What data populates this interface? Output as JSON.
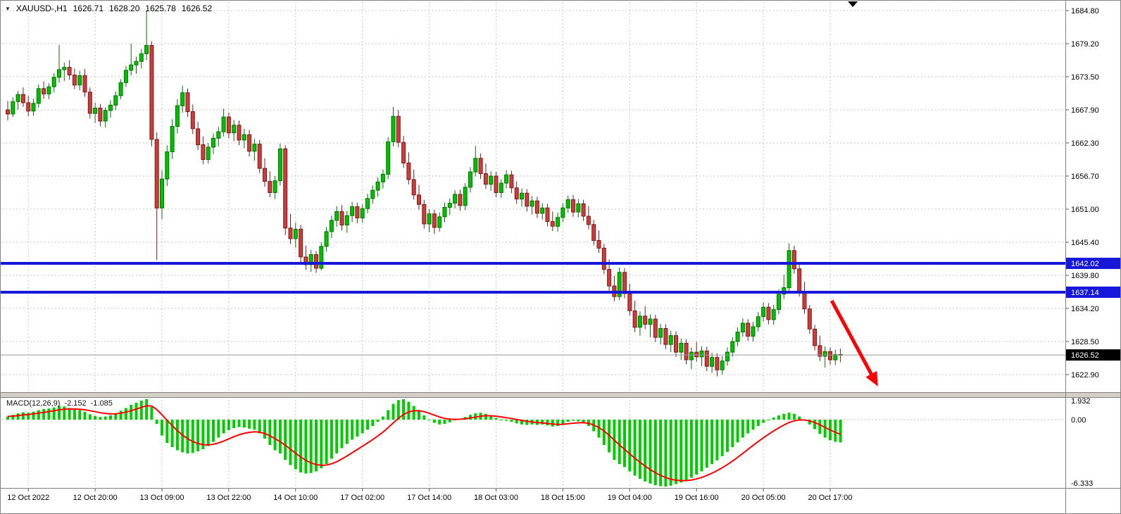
{
  "header": {
    "dropdown_icon": "▼",
    "symbol": "XAUUSD-,H1",
    "open": "1626.71",
    "high": "1628.20",
    "low": "1625.78",
    "close": "1626.52"
  },
  "indicator": {
    "label": "MACD(12,26,9)",
    "value_main": "-2.152",
    "value_signal": "-1.085"
  },
  "colors": {
    "bull_candle": "#00C000",
    "bull_border": "#007400",
    "bear_candle": "#CE3B3B",
    "bear_border": "#7A1C1C",
    "level_line": "#1717D9",
    "current_tag_bg": "#000000",
    "macd_bar": "#00CC00",
    "macd_signal": "#FF0000",
    "arrow": "#FF0000",
    "grid": "#C6C6C6",
    "axis_text": "#000000"
  },
  "chart_controls": {
    "shift_marker_bar": 164.4
  },
  "annotations": [
    {
      "type": "arrow",
      "bar_from": 160.3,
      "price_from": 1635.7,
      "bar_to": 169.3,
      "price_to": 1621.2
    }
  ],
  "chart_data": [
    {
      "type": "candlestick",
      "symbol": "XAUUSD-",
      "timeframe": "H1",
      "ylim": [
        1620.0,
        1686.5
      ],
      "price_ticks": [
        "1684.80",
        "1679.20",
        "1673.50",
        "1667.90",
        "1662.30",
        "1656.70",
        "1651.00",
        "1645.40",
        "1639.80",
        "1634.20",
        "1628.50",
        "1622.90"
      ],
      "x_labels": [
        "12 Oct 2022",
        "12 Oct 20:00",
        "13 Oct 09:00",
        "13 Oct 22:00",
        "14 Oct 10:00",
        "17 Oct 02:00",
        "17 Oct 14:00",
        "18 Oct 03:00",
        "18 Oct 15:00",
        "19 Oct 04:00",
        "19 Oct 16:00",
        "20 Oct 05:00",
        "20 Oct 17:00"
      ],
      "x_label_bar_index": [
        4,
        17,
        30,
        43,
        56,
        69,
        82,
        95,
        108,
        121,
        134,
        147,
        160
      ],
      "levels": [
        {
          "price": 1642.02,
          "label": "1642.02"
        },
        {
          "price": 1637.14,
          "label": "1637.14"
        }
      ],
      "current_price": {
        "price": 1626.52,
        "label": "1626.52"
      },
      "ohlc": [
        [
          1668.0,
          1669.5,
          1666.2,
          1667.3
        ],
        [
          1667.3,
          1670.1,
          1666.8,
          1669.4
        ],
        [
          1669.4,
          1671.2,
          1668.0,
          1670.6
        ],
        [
          1670.6,
          1671.8,
          1668.5,
          1669.2
        ],
        [
          1669.2,
          1670.4,
          1666.9,
          1667.8
        ],
        [
          1667.8,
          1669.9,
          1667.0,
          1669.1
        ],
        [
          1669.1,
          1672.3,
          1668.4,
          1671.6
        ],
        [
          1671.6,
          1672.8,
          1669.9,
          1670.7
        ],
        [
          1670.7,
          1672.5,
          1669.8,
          1671.9
        ],
        [
          1671.9,
          1674.2,
          1671.0,
          1673.5
        ],
        [
          1673.5,
          1679.0,
          1672.6,
          1674.8
        ],
        [
          1674.8,
          1676.0,
          1672.9,
          1675.2
        ],
        [
          1675.2,
          1676.4,
          1673.1,
          1673.9
        ],
        [
          1673.9,
          1675.0,
          1671.5,
          1672.2
        ],
        [
          1672.2,
          1674.6,
          1671.3,
          1673.8
        ],
        [
          1673.8,
          1674.9,
          1670.2,
          1671.0
        ],
        [
          1671.0,
          1671.8,
          1666.5,
          1667.4
        ],
        [
          1667.4,
          1669.2,
          1665.8,
          1668.3
        ],
        [
          1668.3,
          1669.0,
          1665.2,
          1666.1
        ],
        [
          1666.1,
          1668.4,
          1665.0,
          1667.9
        ],
        [
          1667.9,
          1669.6,
          1666.7,
          1668.8
        ],
        [
          1668.8,
          1671.1,
          1668.0,
          1670.4
        ],
        [
          1670.4,
          1673.2,
          1669.8,
          1672.6
        ],
        [
          1672.6,
          1675.4,
          1671.9,
          1674.7
        ],
        [
          1674.7,
          1679.2,
          1673.8,
          1675.6
        ],
        [
          1675.6,
          1677.0,
          1674.1,
          1676.2
        ],
        [
          1676.2,
          1678.3,
          1675.0,
          1677.5
        ],
        [
          1677.5,
          1684.8,
          1676.4,
          1678.9
        ],
        [
          1678.9,
          1679.6,
          1661.8,
          1663.0
        ],
        [
          1663.0,
          1664.2,
          1642.6,
          1651.4
        ],
        [
          1651.4,
          1657.8,
          1649.5,
          1656.3
        ],
        [
          1656.3,
          1662.0,
          1655.1,
          1660.9
        ],
        [
          1660.9,
          1666.4,
          1659.7,
          1665.2
        ],
        [
          1665.2,
          1669.8,
          1664.0,
          1668.7
        ],
        [
          1668.7,
          1672.1,
          1667.5,
          1670.9
        ],
        [
          1670.9,
          1671.6,
          1666.8,
          1667.7
        ],
        [
          1667.7,
          1668.9,
          1663.9,
          1664.8
        ],
        [
          1664.8,
          1666.0,
          1661.2,
          1662.1
        ],
        [
          1662.1,
          1663.5,
          1658.8,
          1659.6
        ],
        [
          1659.6,
          1662.4,
          1658.9,
          1661.7
        ],
        [
          1661.7,
          1664.0,
          1660.5,
          1663.2
        ],
        [
          1663.2,
          1665.1,
          1661.8,
          1664.3
        ],
        [
          1664.3,
          1668.2,
          1663.5,
          1666.8
        ],
        [
          1666.8,
          1667.5,
          1663.2,
          1664.1
        ],
        [
          1664.1,
          1666.3,
          1662.7,
          1665.4
        ],
        [
          1665.4,
          1666.2,
          1662.0,
          1662.9
        ],
        [
          1662.9,
          1664.8,
          1661.5,
          1663.8
        ],
        [
          1663.8,
          1664.6,
          1660.1,
          1661.0
        ],
        [
          1661.0,
          1663.1,
          1659.4,
          1662.2
        ],
        [
          1662.2,
          1662.9,
          1657.3,
          1658.1
        ],
        [
          1658.1,
          1659.8,
          1655.0,
          1655.9
        ],
        [
          1655.9,
          1657.6,
          1653.2,
          1654.0
        ],
        [
          1654.0,
          1656.8,
          1652.9,
          1656.0
        ],
        [
          1656.0,
          1662.3,
          1655.2,
          1661.4
        ],
        [
          1661.4,
          1662.0,
          1646.8,
          1648.0
        ],
        [
          1648.0,
          1650.4,
          1645.3,
          1646.2
        ],
        [
          1646.2,
          1648.9,
          1644.7,
          1647.8
        ],
        [
          1647.8,
          1648.5,
          1642.2,
          1643.1
        ],
        [
          1643.1,
          1645.0,
          1640.9,
          1641.8
        ],
        [
          1641.8,
          1644.3,
          1640.6,
          1643.5
        ],
        [
          1643.5,
          1644.1,
          1640.4,
          1641.2
        ],
        [
          1641.2,
          1645.6,
          1640.8,
          1644.9
        ],
        [
          1644.9,
          1648.2,
          1644.0,
          1647.4
        ],
        [
          1647.4,
          1650.1,
          1646.3,
          1649.3
        ],
        [
          1649.3,
          1651.7,
          1648.2,
          1650.8
        ],
        [
          1650.8,
          1651.9,
          1647.6,
          1648.5
        ],
        [
          1648.5,
          1650.9,
          1647.2,
          1650.1
        ],
        [
          1650.1,
          1652.4,
          1649.0,
          1651.6
        ],
        [
          1651.6,
          1652.3,
          1648.8,
          1649.7
        ],
        [
          1649.7,
          1652.0,
          1648.9,
          1651.3
        ],
        [
          1651.3,
          1653.8,
          1650.5,
          1653.0
        ],
        [
          1653.0,
          1655.2,
          1652.1,
          1654.4
        ],
        [
          1654.4,
          1656.6,
          1653.3,
          1655.8
        ],
        [
          1655.8,
          1657.9,
          1654.7,
          1657.1
        ],
        [
          1657.1,
          1663.4,
          1656.3,
          1662.6
        ],
        [
          1662.6,
          1668.5,
          1661.8,
          1666.9
        ],
        [
          1666.9,
          1668.0,
          1661.7,
          1662.5
        ],
        [
          1662.5,
          1663.6,
          1658.2,
          1659.0
        ],
        [
          1659.0,
          1660.8,
          1655.4,
          1656.2
        ],
        [
          1656.2,
          1657.9,
          1652.8,
          1653.6
        ],
        [
          1653.6,
          1655.3,
          1651.1,
          1652.0
        ],
        [
          1652.0,
          1652.8,
          1647.9,
          1648.7
        ],
        [
          1648.7,
          1651.2,
          1647.3,
          1650.4
        ],
        [
          1650.4,
          1651.1,
          1647.0,
          1648.1
        ],
        [
          1648.1,
          1650.6,
          1647.4,
          1649.9
        ],
        [
          1649.9,
          1652.3,
          1649.0,
          1651.5
        ],
        [
          1651.5,
          1653.0,
          1650.2,
          1652.2
        ],
        [
          1652.2,
          1654.4,
          1651.3,
          1653.7
        ],
        [
          1653.7,
          1654.5,
          1650.9,
          1651.8
        ],
        [
          1651.8,
          1655.6,
          1651.0,
          1654.9
        ],
        [
          1654.9,
          1658.3,
          1654.0,
          1657.5
        ],
        [
          1657.5,
          1661.9,
          1656.7,
          1659.8
        ],
        [
          1659.8,
          1660.6,
          1656.3,
          1657.2
        ],
        [
          1657.2,
          1658.9,
          1654.6,
          1655.4
        ],
        [
          1655.4,
          1657.6,
          1654.3,
          1656.8
        ],
        [
          1656.8,
          1657.5,
          1653.2,
          1654.0
        ],
        [
          1654.0,
          1656.3,
          1653.1,
          1655.6
        ],
        [
          1655.6,
          1657.8,
          1654.7,
          1657.0
        ],
        [
          1657.0,
          1657.7,
          1653.9,
          1654.8
        ],
        [
          1654.8,
          1655.9,
          1652.1,
          1652.9
        ],
        [
          1652.9,
          1654.7,
          1651.6,
          1653.9
        ],
        [
          1653.9,
          1654.6,
          1650.8,
          1651.7
        ],
        [
          1651.7,
          1653.4,
          1650.3,
          1652.6
        ],
        [
          1652.6,
          1653.3,
          1649.7,
          1650.5
        ],
        [
          1650.5,
          1652.2,
          1649.4,
          1651.4
        ],
        [
          1651.4,
          1652.1,
          1648.3,
          1649.1
        ],
        [
          1649.1,
          1650.8,
          1647.5,
          1648.3
        ],
        [
          1648.3,
          1650.6,
          1647.4,
          1649.8
        ],
        [
          1649.8,
          1652.2,
          1649.0,
          1651.4
        ],
        [
          1651.4,
          1653.5,
          1650.6,
          1652.8
        ],
        [
          1652.8,
          1653.6,
          1649.9,
          1650.7
        ],
        [
          1650.7,
          1652.9,
          1649.8,
          1652.1
        ],
        [
          1652.1,
          1652.8,
          1649.2,
          1650.0
        ],
        [
          1650.0,
          1651.7,
          1647.8,
          1648.6
        ],
        [
          1648.6,
          1649.4,
          1645.1,
          1645.9
        ],
        [
          1645.9,
          1647.6,
          1643.8,
          1644.6
        ],
        [
          1644.6,
          1645.3,
          1640.2,
          1641.0
        ],
        [
          1641.0,
          1642.7,
          1637.4,
          1638.2
        ],
        [
          1638.2,
          1639.9,
          1635.6,
          1636.4
        ],
        [
          1636.4,
          1641.3,
          1635.8,
          1640.5
        ],
        [
          1640.5,
          1641.2,
          1636.1,
          1636.9
        ],
        [
          1636.9,
          1638.6,
          1633.2,
          1634.0
        ],
        [
          1634.0,
          1635.7,
          1630.4,
          1631.2
        ],
        [
          1631.2,
          1633.9,
          1629.8,
          1633.1
        ],
        [
          1633.1,
          1634.8,
          1630.9,
          1631.7
        ],
        [
          1631.7,
          1633.4,
          1629.5,
          1632.6
        ],
        [
          1632.6,
          1633.3,
          1628.7,
          1629.5
        ],
        [
          1629.5,
          1631.8,
          1628.3,
          1631.0
        ],
        [
          1631.0,
          1631.7,
          1627.5,
          1628.3
        ],
        [
          1628.3,
          1630.6,
          1627.0,
          1629.8
        ],
        [
          1629.8,
          1630.5,
          1626.2,
          1627.0
        ],
        [
          1627.0,
          1629.3,
          1625.7,
          1628.5
        ],
        [
          1628.5,
          1629.2,
          1624.9,
          1625.7
        ],
        [
          1625.7,
          1627.8,
          1624.1,
          1627.0
        ],
        [
          1627.0,
          1628.7,
          1625.4,
          1626.2
        ],
        [
          1626.2,
          1628.0,
          1624.6,
          1627.2
        ],
        [
          1627.2,
          1627.9,
          1623.8,
          1624.6
        ],
        [
          1624.6,
          1626.9,
          1623.5,
          1626.1
        ],
        [
          1626.1,
          1626.8,
          1622.9,
          1624.0
        ],
        [
          1624.0,
          1626.3,
          1623.2,
          1625.5
        ],
        [
          1625.5,
          1627.8,
          1624.7,
          1627.0
        ],
        [
          1627.0,
          1629.5,
          1626.2,
          1628.8
        ],
        [
          1628.8,
          1631.2,
          1628.0,
          1630.4
        ],
        [
          1630.4,
          1632.7,
          1629.6,
          1631.9
        ],
        [
          1631.9,
          1632.6,
          1628.9,
          1629.7
        ],
        [
          1629.7,
          1632.1,
          1628.8,
          1631.3
        ],
        [
          1631.3,
          1633.8,
          1630.5,
          1633.0
        ],
        [
          1633.0,
          1635.4,
          1632.2,
          1634.6
        ],
        [
          1634.6,
          1635.3,
          1631.7,
          1632.5
        ],
        [
          1632.5,
          1635.0,
          1631.6,
          1634.2
        ],
        [
          1634.2,
          1637.6,
          1633.4,
          1636.8
        ],
        [
          1636.8,
          1640.1,
          1636.0,
          1637.9
        ],
        [
          1637.9,
          1645.4,
          1637.1,
          1644.2
        ],
        [
          1644.2,
          1645.0,
          1640.3,
          1641.1
        ],
        [
          1641.1,
          1641.8,
          1636.4,
          1637.2
        ],
        [
          1637.2,
          1638.9,
          1633.5,
          1634.3
        ],
        [
          1634.3,
          1635.0,
          1630.1,
          1630.9
        ],
        [
          1630.9,
          1631.6,
          1627.3,
          1628.1
        ],
        [
          1628.1,
          1629.8,
          1625.5,
          1626.3
        ],
        [
          1626.3,
          1628.0,
          1624.4,
          1627.1
        ],
        [
          1627.1,
          1627.8,
          1624.9,
          1625.7
        ],
        [
          1625.7,
          1627.4,
          1624.8,
          1626.6
        ],
        [
          1626.6,
          1627.6,
          1625.3,
          1626.52
        ]
      ]
    },
    {
      "type": "bar",
      "name": "MACD(12,26,9)",
      "signal": "EMA(9) of values",
      "last_main": -2.152,
      "last_signal": -1.085,
      "ticks": [
        "1.932",
        "0.00",
        "-6.333"
      ],
      "ylim": [
        -6.333,
        1.932
      ],
      "values": [
        0.3,
        0.45,
        0.6,
        0.7,
        0.65,
        0.75,
        0.9,
        1.0,
        1.05,
        1.15,
        1.3,
        1.25,
        1.1,
        0.95,
        0.9,
        0.75,
        0.5,
        0.35,
        0.25,
        0.3,
        0.4,
        0.6,
        0.85,
        1.1,
        1.4,
        1.6,
        1.8,
        1.93,
        1.2,
        -0.4,
        -1.5,
        -2.2,
        -2.6,
        -2.9,
        -3.1,
        -3.2,
        -3.15,
        -3.0,
        -2.8,
        -2.5,
        -2.1,
        -1.7,
        -1.3,
        -1.0,
        -0.8,
        -0.7,
        -0.75,
        -0.85,
        -0.95,
        -1.3,
        -1.8,
        -2.4,
        -2.9,
        -3.2,
        -3.8,
        -4.3,
        -4.7,
        -5.0,
        -5.1,
        -5.05,
        -4.9,
        -4.6,
        -4.2,
        -3.7,
        -3.2,
        -2.7,
        -2.3,
        -1.9,
        -1.6,
        -1.3,
        -0.95,
        -0.6,
        -0.2,
        0.3,
        0.9,
        1.5,
        1.85,
        1.93,
        1.7,
        1.3,
        0.85,
        0.4,
        0.0,
        -0.3,
        -0.45,
        -0.4,
        -0.25,
        -0.05,
        0.1,
        0.25,
        0.45,
        0.6,
        0.65,
        0.55,
        0.35,
        0.15,
        0.0,
        -0.1,
        -0.2,
        -0.35,
        -0.45,
        -0.5,
        -0.45,
        -0.5,
        -0.45,
        -0.55,
        -0.65,
        -0.6,
        -0.4,
        -0.2,
        -0.1,
        -0.15,
        -0.25,
        -0.6,
        -1.1,
        -1.7,
        -2.4,
        -3.1,
        -3.8,
        -4.2,
        -4.5,
        -4.9,
        -5.3,
        -5.6,
        -5.85,
        -6.05,
        -6.2,
        -6.3,
        -6.33,
        -6.25,
        -6.1,
        -5.95,
        -5.75,
        -5.5,
        -5.2,
        -4.9,
        -4.55,
        -4.2,
        -3.85,
        -3.45,
        -3.05,
        -2.6,
        -2.15,
        -1.7,
        -1.3,
        -0.95,
        -0.6,
        -0.3,
        -0.05,
        0.2,
        0.4,
        0.55,
        0.65,
        0.55,
        0.3,
        -0.05,
        -0.45,
        -0.9,
        -1.35,
        -1.7,
        -1.95,
        -2.1,
        -2.152
      ]
    }
  ]
}
